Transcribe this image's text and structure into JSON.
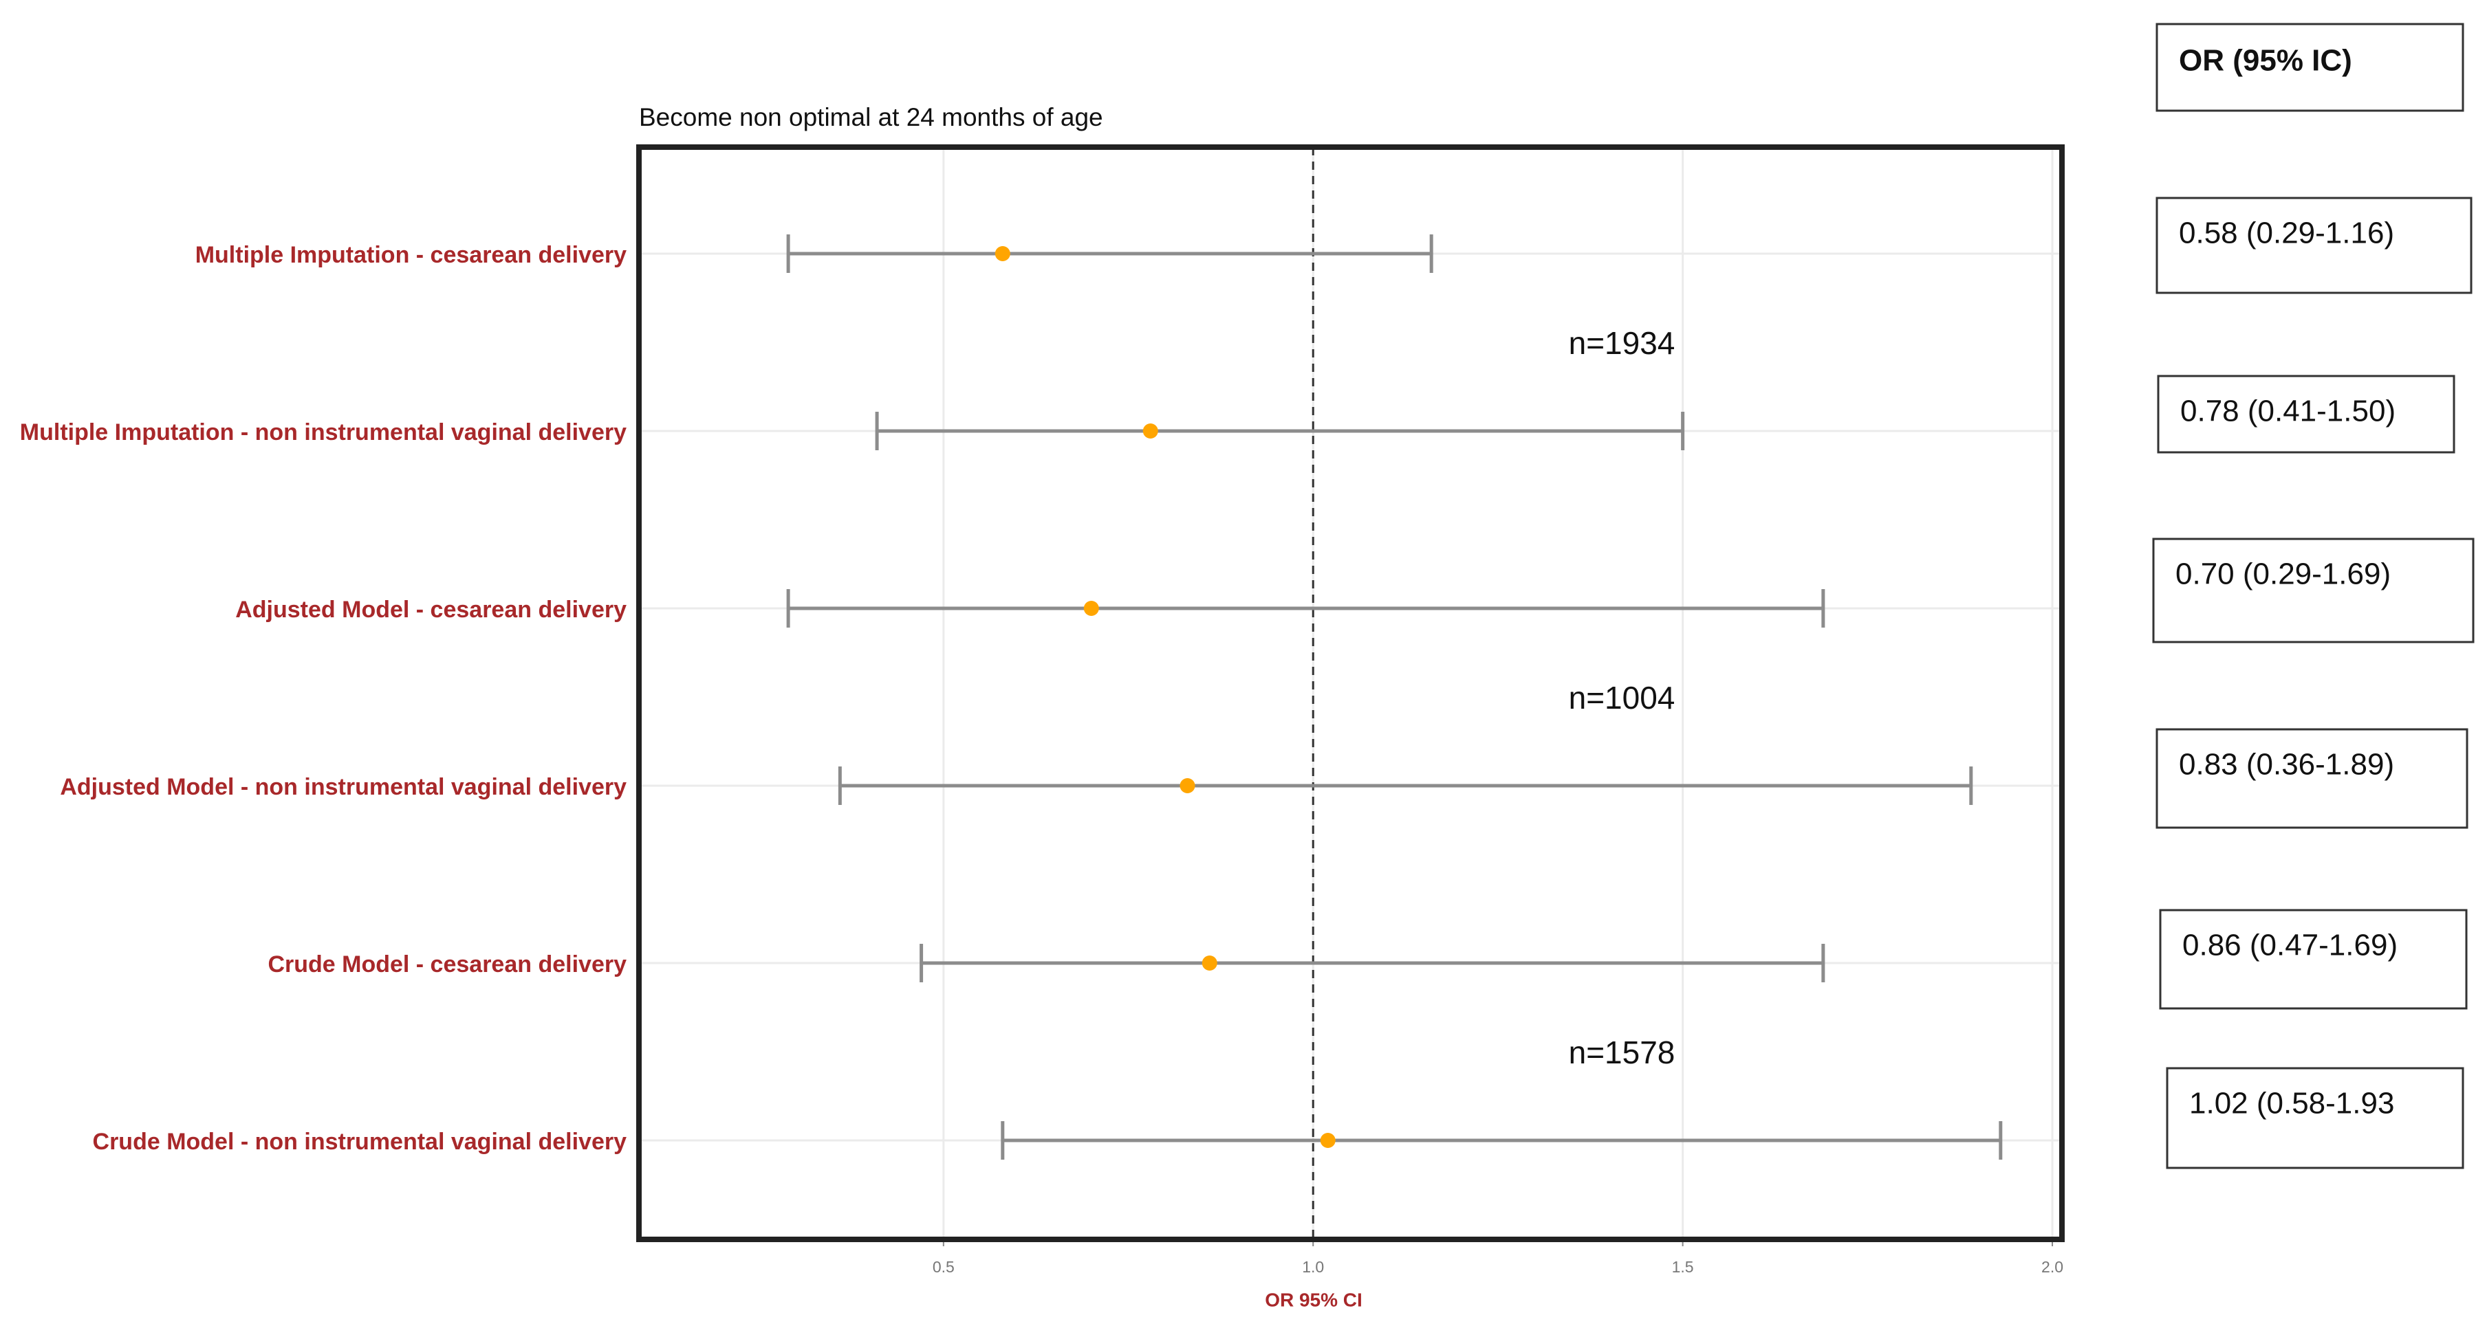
{
  "chart_data": {
    "type": "forest",
    "title": "Become non optimal at 24 months of age",
    "xlabel": "OR 95% CI",
    "categories": [
      "Multiple Imputation - cesarean delivery",
      "Multiple Imputation - non instrumental vaginal delivery",
      "Adjusted Model - cesarean delivery",
      "Adjusted Model - non instrumental vaginal delivery",
      "Crude Model - cesarean delivery",
      "Crude Model - non instrumental vaginal delivery"
    ],
    "values": [
      0.58,
      0.78,
      0.7,
      0.83,
      0.86,
      1.02
    ],
    "lower": [
      0.29,
      0.41,
      0.29,
      0.36,
      0.47,
      0.58
    ],
    "upper": [
      1.16,
      1.5,
      1.69,
      1.89,
      1.69,
      1.93
    ],
    "value_labels": [
      "0.58 (0.29-1.16)",
      "0.78 (0.41-1.50)",
      "0.70 (0.29-1.69)",
      "0.83 (0.36-1.89)",
      "0.86 (0.47-1.69)",
      "1.02 (0.58-1.93"
    ],
    "table_header": "OR (95% IC)",
    "annotations": [
      "n=1934",
      "n=1004",
      "n=1578"
    ],
    "xlim": [
      0.088,
      2.013
    ],
    "xticks": [
      {
        "value": 0.5,
        "label": "0.5"
      },
      {
        "value": 1.0,
        "label": "1.0"
      },
      {
        "value": 1.5,
        "label": "1.5"
      },
      {
        "value": 2.0,
        "label": "2.0"
      }
    ],
    "ref_line": 1,
    "grid": true,
    "point_color": "#ffa500",
    "bar_color": "#8c8c8c",
    "label_color": "#a8282a"
  }
}
